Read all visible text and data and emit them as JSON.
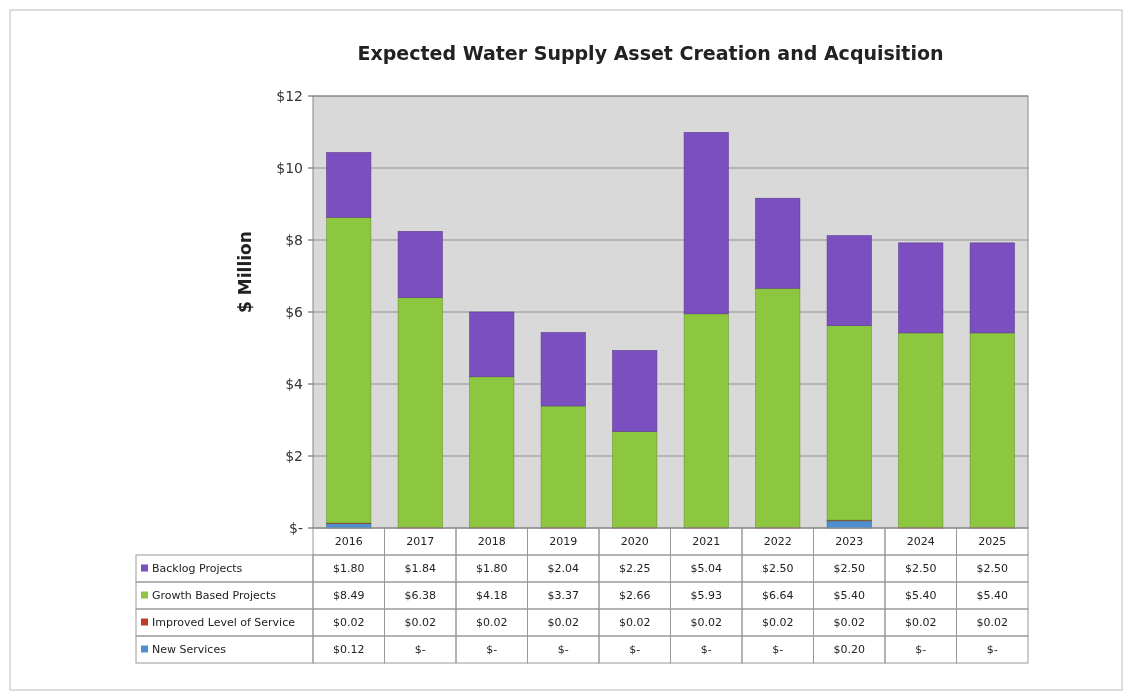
{
  "chart_data": {
    "type": "bar",
    "title": "Expected Water Supply Asset Creation and Acquisition",
    "ylabel": "$ Million",
    "categories": [
      "2016",
      "2017",
      "2018",
      "2019",
      "2020",
      "2021",
      "2022",
      "2023",
      "2024",
      "2025"
    ],
    "stacked": true,
    "grid": "y",
    "legend": "bottom",
    "ylim": [
      0,
      12
    ],
    "yticks": [
      {
        "value": 0,
        "label": "$-"
      },
      {
        "value": 2,
        "label": "$2"
      },
      {
        "value": 4,
        "label": "$4"
      },
      {
        "value": 6,
        "label": "$6"
      },
      {
        "value": 8,
        "label": "$8"
      },
      {
        "value": 10,
        "label": "$10"
      },
      {
        "value": 12,
        "label": "$12"
      }
    ],
    "series": [
      {
        "name": "New Services",
        "color": "#4f8fcf",
        "values": [
          0.12,
          0,
          0,
          0,
          0,
          0,
          0,
          0.2,
          0,
          0
        ],
        "value_labels": [
          "$0.12",
          "$-",
          "$-",
          "$-",
          "$-",
          "$-",
          "$-",
          "$0.20",
          "$-",
          "$-"
        ]
      },
      {
        "name": "Improved Level of Service",
        "color": "#c0392b",
        "values": [
          0.02,
          0.02,
          0.02,
          0.02,
          0.02,
          0.02,
          0.02,
          0.02,
          0.02,
          0.02
        ],
        "value_labels": [
          "$0.02",
          "$0.02",
          "$0.02",
          "$0.02",
          "$0.02",
          "$0.02",
          "$0.02",
          "$0.02",
          "$0.02",
          "$0.02"
        ]
      },
      {
        "name": "Growth Based Projects",
        "color": "#8dc63f",
        "values": [
          8.49,
          6.38,
          4.18,
          3.37,
          2.66,
          5.93,
          6.64,
          5.4,
          5.4,
          5.4
        ],
        "value_labels": [
          "$8.49",
          "$6.38",
          "$4.18",
          "$3.37",
          "$2.66",
          "$5.93",
          "$6.64",
          "$5.40",
          "$5.40",
          "$5.40"
        ]
      },
      {
        "name": "Backlog Projects",
        "color": "#7b4fc0",
        "values": [
          1.8,
          1.84,
          1.8,
          2.04,
          2.25,
          5.04,
          2.5,
          2.5,
          2.5,
          2.5
        ],
        "value_labels": [
          "$1.80",
          "$1.84",
          "$1.80",
          "$2.04",
          "$2.25",
          "$5.04",
          "$2.50",
          "$2.50",
          "$2.50",
          "$2.50"
        ]
      }
    ]
  }
}
